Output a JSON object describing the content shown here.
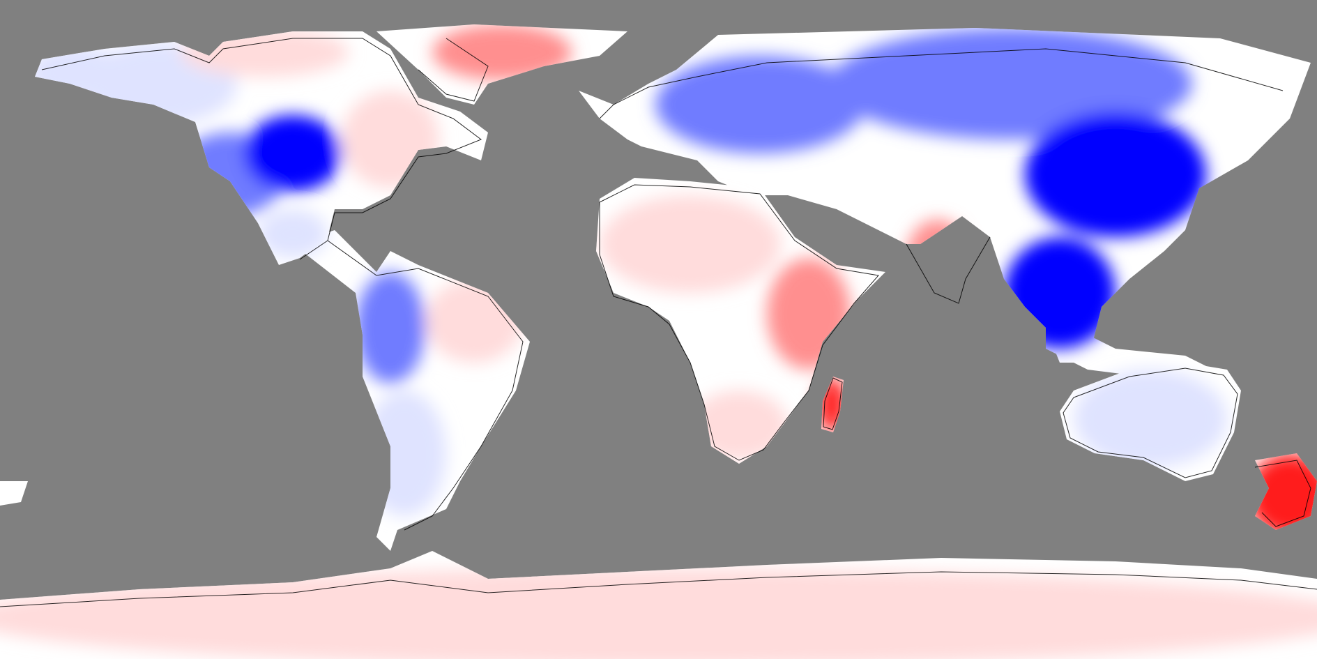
{
  "map": {
    "projection": "equirectangular",
    "ocean_color": "#808080",
    "coastline_color": "#000000",
    "scale": {
      "strong_negative": "#0000ff",
      "negative": "#6f7bff",
      "weak_negative": "#dfe3ff",
      "neutral": "#ffffff",
      "weak_positive": "#ffdcdc",
      "positive": "#ff8f8f",
      "strong_positive": "#ff1e1e"
    },
    "regions": [
      {
        "name": "alaska",
        "level": "weak_negative"
      },
      {
        "name": "western-canada",
        "level": "weak_negative"
      },
      {
        "name": "canadian-arctic-islands",
        "level": "weak_positive"
      },
      {
        "name": "north-american-rockies",
        "level": "negative"
      },
      {
        "name": "great-plains",
        "level": "strong_negative"
      },
      {
        "name": "eastern-north-america",
        "level": "weak_positive"
      },
      {
        "name": "greenland",
        "level": "positive"
      },
      {
        "name": "mexico",
        "level": "weak_negative"
      },
      {
        "name": "western-south-america",
        "level": "negative"
      },
      {
        "name": "brazil",
        "level": "weak_positive"
      },
      {
        "name": "southern-south-america",
        "level": "weak_negative"
      },
      {
        "name": "europe",
        "level": "negative"
      },
      {
        "name": "sahara",
        "level": "weak_positive"
      },
      {
        "name": "east-africa",
        "level": "positive"
      },
      {
        "name": "southern-africa",
        "level": "weak_positive"
      },
      {
        "name": "madagascar",
        "level": "strong_positive"
      },
      {
        "name": "siberia",
        "level": "negative"
      },
      {
        "name": "india",
        "level": "positive"
      },
      {
        "name": "east-asia",
        "level": "strong_negative"
      },
      {
        "name": "southeast-asia",
        "level": "strong_negative"
      },
      {
        "name": "australia",
        "level": "weak_negative"
      },
      {
        "name": "new-zealand",
        "level": "strong_positive"
      },
      {
        "name": "antarctica",
        "level": "weak_positive"
      }
    ]
  }
}
